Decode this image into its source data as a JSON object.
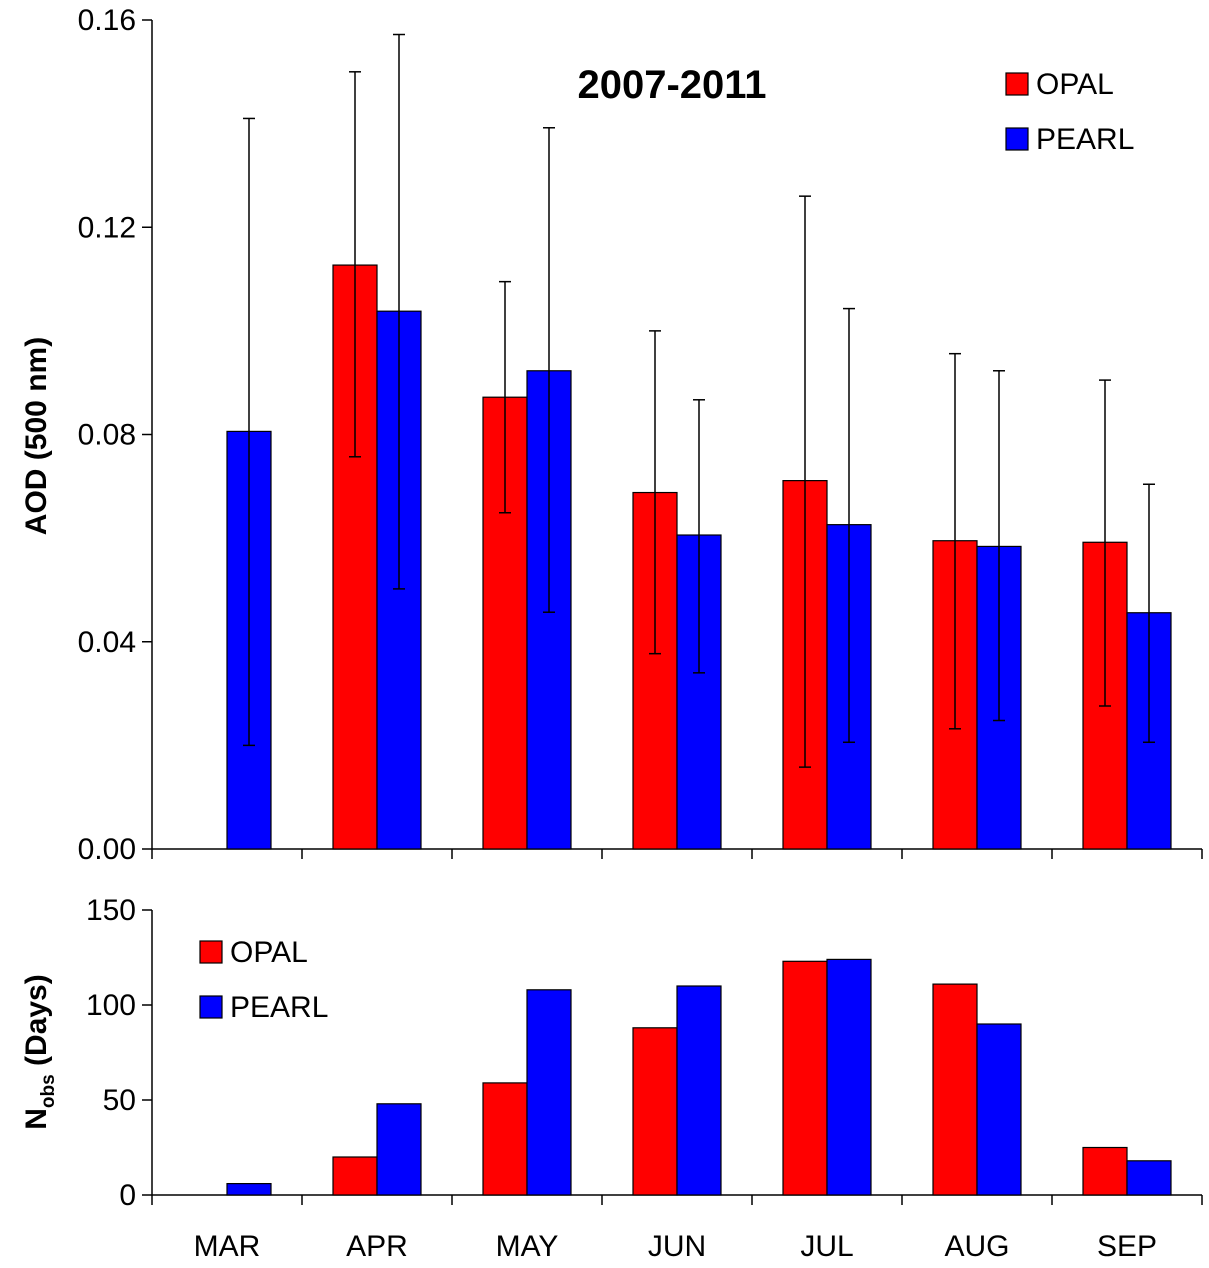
{
  "chart_data": [
    {
      "type": "bar",
      "title": "2007-2011",
      "ylabel": "AOD (500 nm)",
      "xlabel": "",
      "categories": [
        "MAR",
        "APR",
        "MAY",
        "JUN",
        "JUL",
        "AUG",
        "SEP"
      ],
      "ylim": [
        0,
        0.16
      ],
      "yticks": [
        "0.00",
        "0.04",
        "0.08",
        "0.12",
        "0.16"
      ],
      "legend_position": "top-right",
      "grid": false,
      "error_bars": true,
      "series": [
        {
          "name": "OPAL",
          "color": "#ff0000",
          "values": [
            null,
            0.1127,
            0.0872,
            0.0688,
            0.0711,
            0.0595,
            0.0592
          ],
          "error_low": [
            null,
            0.0757,
            0.0649,
            0.0377,
            0.0158,
            0.0232,
            0.0276
          ],
          "error_high": [
            null,
            0.15,
            0.1095,
            0.1,
            0.126,
            0.0956,
            0.0905
          ]
        },
        {
          "name": "PEARL",
          "color": "#0000ff",
          "values": [
            0.0806,
            0.1038,
            0.0923,
            0.0606,
            0.0626,
            0.0584,
            0.0456
          ],
          "error_low": [
            0.02,
            0.0502,
            0.0457,
            0.034,
            0.0206,
            0.0248,
            0.0206
          ],
          "error_high": [
            0.141,
            0.1572,
            0.1392,
            0.0867,
            0.1043,
            0.0923,
            0.0704
          ]
        }
      ]
    },
    {
      "type": "bar",
      "title": "",
      "ylabel": "N",
      "ylabel_subscript": "obs",
      "ylabel_suffix": " (Days)",
      "xlabel": "",
      "categories": [
        "MAR",
        "APR",
        "MAY",
        "JUN",
        "JUL",
        "AUG",
        "SEP"
      ],
      "ylim": [
        0,
        150
      ],
      "yticks": [
        "0",
        "50",
        "100",
        "150"
      ],
      "legend_position": "top-left",
      "grid": false,
      "series": [
        {
          "name": "OPAL",
          "color": "#ff0000",
          "values": [
            0,
            20,
            59,
            88,
            123,
            111,
            25
          ]
        },
        {
          "name": "PEARL",
          "color": "#0000ff",
          "values": [
            6,
            48,
            108,
            110,
            124,
            90,
            18
          ]
        }
      ]
    }
  ]
}
